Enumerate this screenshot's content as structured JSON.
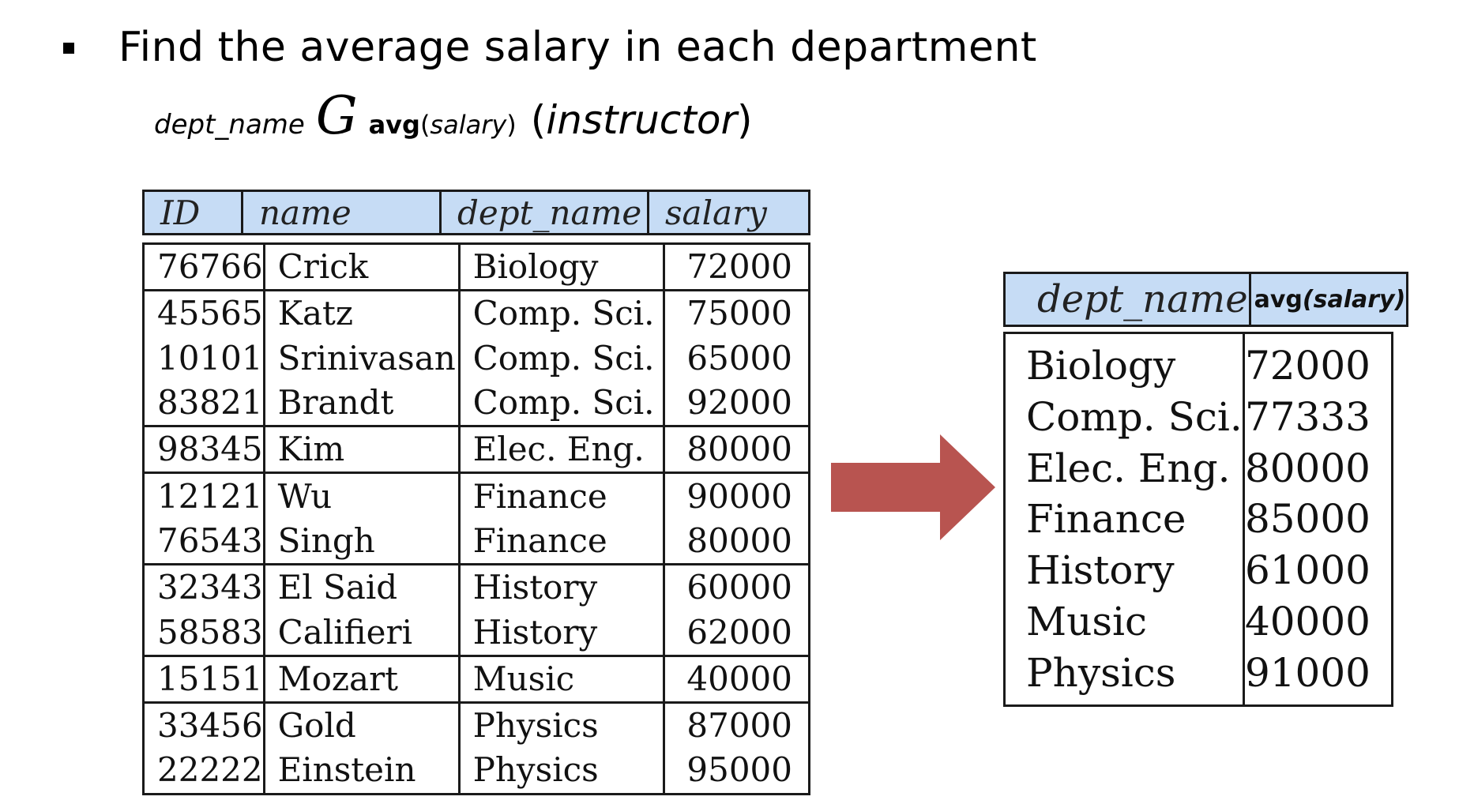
{
  "heading": "Find the average salary in each department",
  "formula": {
    "group_attr": "dept_name",
    "operator": "G",
    "agg_fn": "avg",
    "agg_arg": "salary",
    "relation": "instructor"
  },
  "instructor_table": {
    "headers": [
      "ID",
      "name",
      "dept_name",
      "salary"
    ],
    "rows": [
      [
        "76766",
        "Crick",
        "Biology",
        "72000"
      ],
      [
        "45565",
        "Katz",
        "Comp. Sci.",
        "75000"
      ],
      [
        "10101",
        "Srinivasan",
        "Comp. Sci.",
        "65000"
      ],
      [
        "83821",
        "Brandt",
        "Comp. Sci.",
        "92000"
      ],
      [
        "98345",
        "Kim",
        "Elec. Eng.",
        "80000"
      ],
      [
        "12121",
        "Wu",
        "Finance",
        "90000"
      ],
      [
        "76543",
        "Singh",
        "Finance",
        "80000"
      ],
      [
        "32343",
        "El Said",
        "History",
        "60000"
      ],
      [
        "58583",
        "Califieri",
        "History",
        "62000"
      ],
      [
        "15151",
        "Mozart",
        "Music",
        "40000"
      ],
      [
        "33456",
        "Gold",
        "Physics",
        "87000"
      ],
      [
        "22222",
        "Einstein",
        "Physics",
        "95000"
      ]
    ]
  },
  "result_table": {
    "headers": {
      "group": "dept_name",
      "agg_fn": "avg",
      "agg_arg": "(salary)"
    },
    "rows": [
      [
        "Biology",
        "72000"
      ],
      [
        "Comp. Sci.",
        "77333"
      ],
      [
        "Elec. Eng.",
        "80000"
      ],
      [
        "Finance",
        "85000"
      ],
      [
        "History",
        "61000"
      ],
      [
        "Music",
        "40000"
      ],
      [
        "Physics",
        "91000"
      ]
    ]
  },
  "colors": {
    "header_bg": "#c6dcf5",
    "arrow": "#b85450",
    "border": "#1a1a1a"
  }
}
